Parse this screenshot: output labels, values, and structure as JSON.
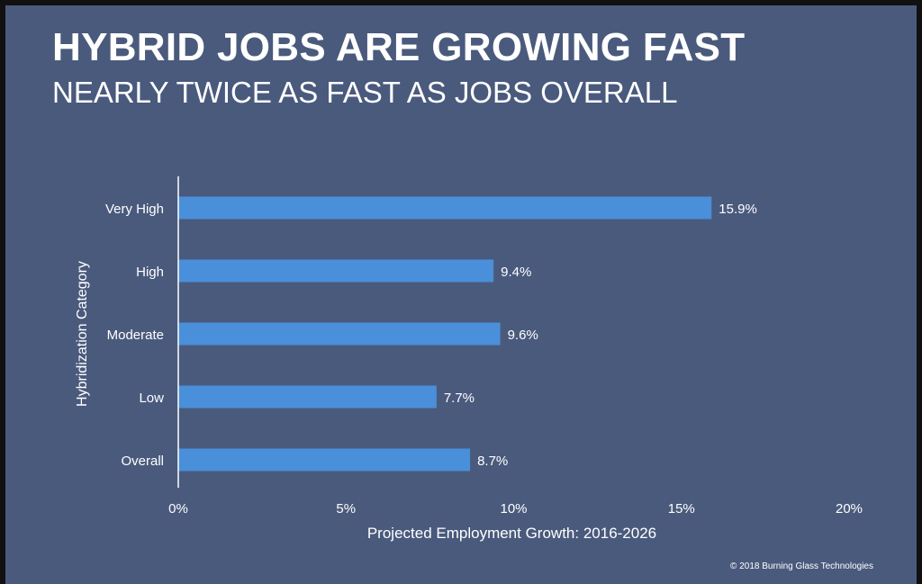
{
  "slide": {
    "title": "HYBRID JOBS ARE GROWING FAST",
    "subtitle": "NEARLY TWICE AS FAST AS JOBS OVERALL",
    "copyright": "© 2018 Burning Glass Technologies"
  },
  "colors": {
    "background": "#4a5a7d",
    "bar": "#4a8fd9",
    "text": "#ffffff",
    "axis": "#ffffff"
  },
  "chart_data": {
    "type": "bar",
    "orientation": "horizontal",
    "title": "",
    "xlabel": "Projected Employment Growth: 2016-2026",
    "ylabel": "Hybridization Category",
    "categories": [
      "Very High",
      "High",
      "Moderate",
      "Low",
      "Overall"
    ],
    "values": [
      15.9,
      9.4,
      9.6,
      7.7,
      8.7
    ],
    "value_labels": [
      "15.9%",
      "9.4%",
      "9.6%",
      "7.7%",
      "8.7%"
    ],
    "xlim": [
      0,
      20
    ],
    "xticks": [
      0,
      5,
      10,
      15,
      20
    ],
    "xtick_labels": [
      "0%",
      "5%",
      "10%",
      "15%",
      "20%"
    ],
    "grid": false,
    "legend": "none"
  }
}
